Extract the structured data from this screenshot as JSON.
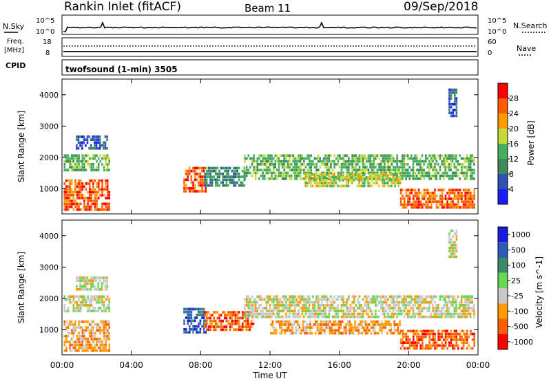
{
  "header": {
    "station": "Rankin Inlet (fitACF)",
    "beam": "Beam 11",
    "date": "09/Sep/2018"
  },
  "nsky_panel": {
    "left_label": "N.Sky",
    "left_ticks": [
      "10^5",
      "10^0"
    ],
    "right_ticks": [
      "10^5",
      "10^0"
    ],
    "right_label": "N.Search"
  },
  "freq_panel": {
    "left_label_1": "Freq.",
    "left_label_2": "[MHz]",
    "left_ticks": [
      "18",
      "8"
    ],
    "right_ticks": [
      "60",
      "0"
    ],
    "right_label": "Nave"
  },
  "cpid_panel": {
    "left_label": "CPID",
    "text": "twofsound (1-min) 3505"
  },
  "colors": {
    "power": [
      "#1a1aff",
      "#2e54b0",
      "#3e8a58",
      "#43b060",
      "#c6d83a",
      "#ff9a00",
      "#ff5a00",
      "#ff0000"
    ],
    "velocity": [
      "#ff0000",
      "#ff5e00",
      "#ff9a00",
      "#c8c8c8",
      "#63d850",
      "#3a8a6a",
      "#2f5bb8",
      "#1a1ae6"
    ]
  },
  "chart_data": [
    {
      "type": "heatmap",
      "name": "power",
      "ylabel": "Slant Range [km]",
      "ylim": [
        200,
        4500
      ],
      "yticks": [
        "1000",
        "2000",
        "3000",
        "4000"
      ],
      "colorbar": {
        "label": "Power [dB]",
        "ticks": [
          "4",
          "8",
          "12",
          "16",
          "20",
          "24",
          "28"
        ]
      },
      "regions": [
        {
          "t0": 0.1,
          "t1": 2.7,
          "r0": 300,
          "r1": 1300,
          "c": 6
        },
        {
          "t0": 0.1,
          "t1": 2.7,
          "r0": 1600,
          "r1": 2100,
          "c": 3
        },
        {
          "t0": 0.8,
          "t1": 2.6,
          "r0": 2300,
          "r1": 2700,
          "c": 1
        },
        {
          "t0": 7.0,
          "t1": 8.3,
          "r0": 900,
          "r1": 1700,
          "c": 6
        },
        {
          "t0": 8.2,
          "t1": 10.5,
          "r0": 1100,
          "r1": 1700,
          "c": 2
        },
        {
          "t0": 10.5,
          "t1": 23.8,
          "r0": 1300,
          "r1": 2100,
          "c": 3
        },
        {
          "t0": 14.0,
          "t1": 19.5,
          "r0": 1100,
          "r1": 1500,
          "c": 4
        },
        {
          "t0": 19.5,
          "t1": 23.8,
          "r0": 400,
          "r1": 1000,
          "c": 6
        },
        {
          "t0": 22.3,
          "t1": 22.8,
          "r0": 3300,
          "r1": 4200,
          "c": 1
        }
      ]
    },
    {
      "type": "heatmap",
      "name": "velocity",
      "xlabel": "Time UT",
      "xticks": [
        "00:00",
        "04:00",
        "08:00",
        "12:00",
        "16:00",
        "20:00",
        "00:00"
      ],
      "ylabel": "Slant Range [km]",
      "ylim": [
        200,
        4500
      ],
      "yticks": [
        "1000",
        "2000",
        "3000",
        "4000"
      ],
      "colorbar": {
        "label": "Velocity [m s^-1]",
        "ticks": [
          "1000",
          "500",
          "100",
          "25",
          "-25",
          "-100",
          "-500",
          "-1000"
        ]
      },
      "regions": [
        {
          "t0": 0.1,
          "t1": 2.7,
          "r0": 300,
          "r1": 1300,
          "c": 2
        },
        {
          "t0": 0.1,
          "t1": 2.7,
          "r0": 1600,
          "r1": 2100,
          "c": 3
        },
        {
          "t0": 0.8,
          "t1": 2.6,
          "r0": 2300,
          "r1": 2700,
          "c": 3
        },
        {
          "t0": 7.0,
          "t1": 8.3,
          "r0": 900,
          "r1": 1700,
          "c": 6
        },
        {
          "t0": 8.2,
          "t1": 11.0,
          "r0": 1000,
          "r1": 1600,
          "c": 1
        },
        {
          "t0": 10.5,
          "t1": 23.8,
          "r0": 1400,
          "r1": 2100,
          "c": 3
        },
        {
          "t0": 12.0,
          "t1": 19.5,
          "r0": 900,
          "r1": 1300,
          "c": 2
        },
        {
          "t0": 19.5,
          "t1": 23.8,
          "r0": 400,
          "r1": 1000,
          "c": 1
        },
        {
          "t0": 22.3,
          "t1": 22.8,
          "r0": 3300,
          "r1": 4200,
          "c": 3
        }
      ]
    }
  ]
}
